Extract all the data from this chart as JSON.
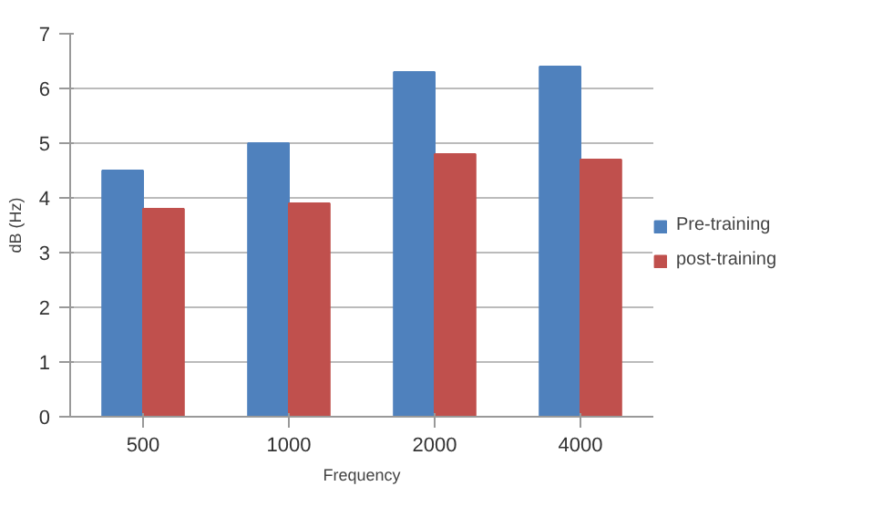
{
  "chart_data": {
    "type": "bar",
    "xlabel": "Frequency",
    "ylabel": "dB (Hz)",
    "categories": [
      "500",
      "1000",
      "2000",
      "4000"
    ],
    "series": [
      {
        "name": "Pre-training",
        "color": "#4f81bd",
        "values": [
          4.5,
          5.0,
          6.3,
          6.4
        ]
      },
      {
        "name": "post-training",
        "color": "#c0504d",
        "values": [
          3.8,
          3.9,
          4.8,
          4.7
        ]
      }
    ],
    "ylim": [
      0,
      7
    ],
    "yticks": [
      0,
      1,
      2,
      3,
      4,
      5,
      6,
      7
    ],
    "grid": "y",
    "legend": "right"
  }
}
